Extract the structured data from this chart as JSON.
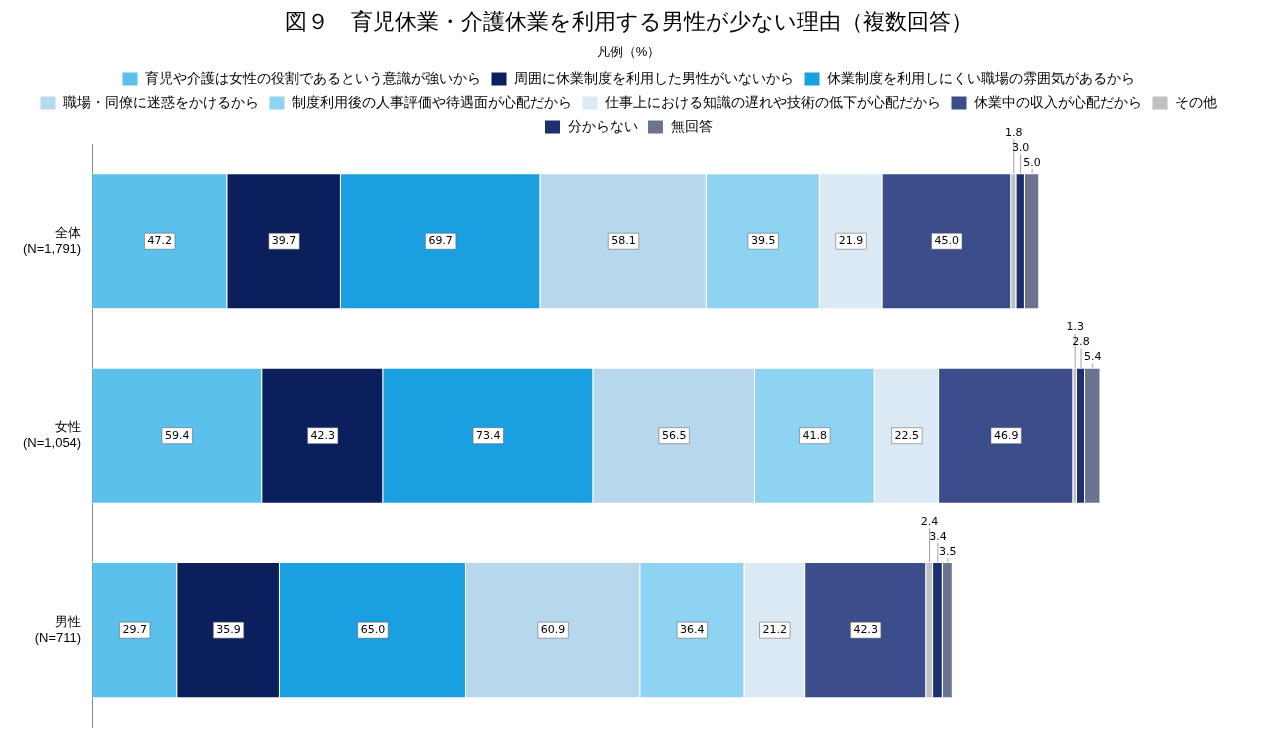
{
  "chart_data": {
    "type": "bar",
    "orientation": "horizontal",
    "stacked": true,
    "legend": "top",
    "legend_title": "凡例（%）",
    "title": "図９　育児休業・介護休業を利用する男性が少ない理由（複数回答）",
    "categories": [
      "全体\n(N=1,791)",
      "女性\n(N=1,054)",
      "男性\n(N=711)"
    ],
    "series": [
      {
        "name": "育児や介護は女性の役割であるという意識が強いから",
        "color": "#5bc0eb",
        "values": [
          47.2,
          59.4,
          29.7
        ],
        "value_labels": [
          "47.2",
          "59.4",
          "29.7"
        ]
      },
      {
        "name": "周囲に休業制度を利用した男性がいないから",
        "color": "#0b1f5c",
        "values": [
          39.7,
          42.3,
          35.9
        ],
        "value_labels": [
          "39.7",
          "42.3",
          "35.9"
        ]
      },
      {
        "name": "休業制度を利用しにくい職場の雰囲気があるから",
        "color": "#1a9fe0",
        "values": [
          69.7,
          73.4,
          65.0
        ],
        "value_labels": [
          "69.7",
          "73.4",
          "65.0"
        ]
      },
      {
        "name": "職場・同僚に迷惑をかけるから",
        "color": "#b7d8ec",
        "values": [
          58.1,
          56.5,
          60.9
        ],
        "value_labels": [
          "58.1",
          "56.5",
          "60.9"
        ]
      },
      {
        "name": "制度利用後の人事評価や待遇面が心配だから",
        "color": "#8fd3f2",
        "values": [
          39.5,
          41.8,
          36.4
        ],
        "value_labels": [
          "39.5",
          "41.8",
          "36.4"
        ]
      },
      {
        "name": "仕事上における知識の遅れや技術の低下が心配だから",
        "color": "#dbe9f4",
        "values": [
          21.9,
          22.5,
          21.2
        ],
        "value_labels": [
          "21.9",
          "22.5",
          "21.2"
        ]
      },
      {
        "name": "休業中の収入が心配だから",
        "color": "#3b4d8a",
        "values": [
          45.0,
          46.9,
          42.3
        ],
        "value_labels": [
          "45.0",
          "46.9",
          "42.3"
        ]
      },
      {
        "name": "その他",
        "color": "#bfbfbf",
        "values": [
          1.8,
          1.3,
          2.4
        ],
        "value_labels": [
          "1.8",
          "1.3",
          "2.4"
        ]
      },
      {
        "name": "分からない",
        "color": "#1c2f6e",
        "values": [
          3.0,
          2.8,
          3.4
        ],
        "value_labels": [
          "3.0",
          "2.8",
          "3.4"
        ]
      },
      {
        "name": "無回答",
        "color": "#6b7391",
        "values": [
          5.0,
          5.4,
          3.5
        ],
        "value_labels": [
          "5.0",
          "5.4",
          "3.5"
        ]
      }
    ]
  }
}
